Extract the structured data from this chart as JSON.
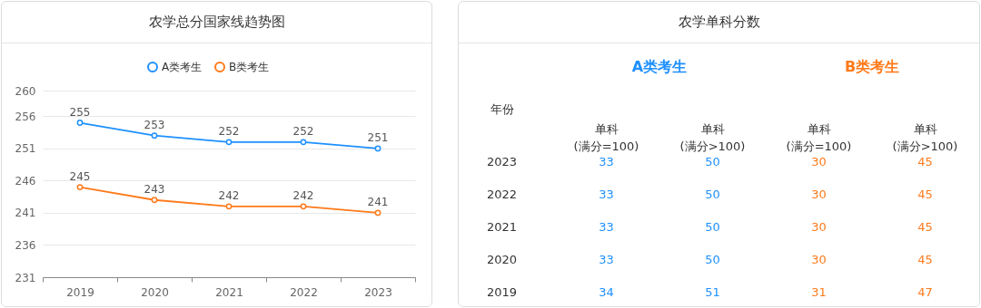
{
  "chart_data": [
    {
      "type": "line",
      "title": "农学总分国家线趋势图",
      "categories": [
        "2019",
        "2020",
        "2021",
        "2022",
        "2023"
      ],
      "series": [
        {
          "name": "A类考生",
          "color": "#1e90ff",
          "values": [
            255,
            253,
            252,
            252,
            251
          ]
        },
        {
          "name": "B类考生",
          "color": "#ff7a1a",
          "values": [
            245,
            243,
            242,
            242,
            241
          ]
        }
      ],
      "ylim": [
        231,
        260
      ],
      "yticks": [
        231,
        236,
        241,
        246,
        251,
        256,
        260
      ],
      "grid": "y",
      "legend": "top",
      "marker": "circle",
      "line_style": "solid",
      "data_labels": true
    },
    {
      "type": "heatmap",
      "title": "农学单科分数",
      "ylabel": "年份",
      "annotations": [
        "A类考生",
        "B类考生"
      ],
      "colors": [
        "#1e90ff",
        "#1e90ff",
        "#ff7a1a",
        "#ff7a1a"
      ],
      "data_labels": true,
      "categories": [
        "单科\n(满分=100)",
        "单科\n(满分>100)",
        "单科\n(满分=100)",
        "单科\n(满分>100)"
      ],
      "y_categories": [
        "2023",
        "2022",
        "2021",
        "2020",
        "2019"
      ],
      "cells": [
        [
          33,
          50,
          30,
          45
        ],
        [
          33,
          50,
          30,
          45
        ],
        [
          33,
          50,
          30,
          45
        ],
        [
          33,
          50,
          30,
          45
        ],
        [
          34,
          51,
          31,
          47
        ]
      ]
    }
  ]
}
